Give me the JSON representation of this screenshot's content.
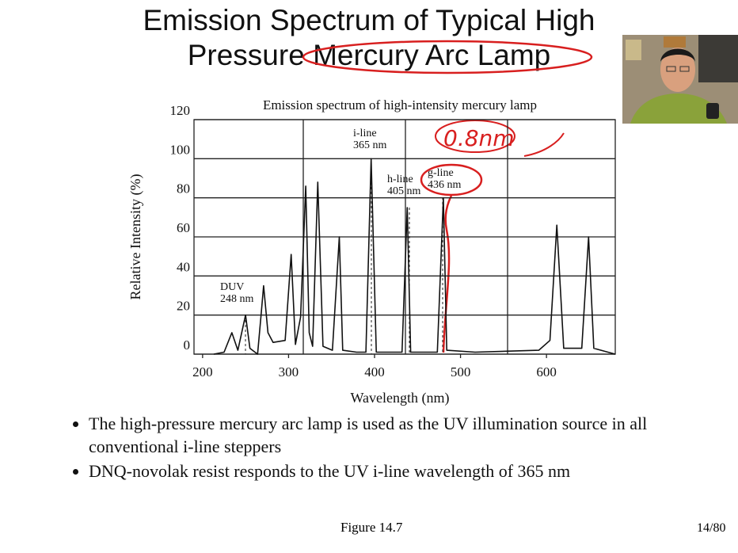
{
  "title": [
    "Emission Spectrum of Typical High",
    "Pressure Mercury Arc Lamp"
  ],
  "chart_data": {
    "type": "line",
    "title": "Emission spectrum of high-intensity mercury lamp",
    "x_label": "Wavelength (nm)",
    "y_label": "Relative Intensity (%)",
    "xlim": [
      190,
      680
    ],
    "ylim": [
      0,
      120
    ],
    "xticks": [
      200,
      300,
      400,
      500,
      600
    ],
    "yticks": [
      0,
      20,
      40,
      60,
      80,
      100,
      120
    ],
    "grid": true,
    "x": [
      213,
      225,
      234,
      241,
      250,
      255,
      264,
      268,
      271,
      276,
      282,
      296,
      303,
      308,
      314,
      320,
      324,
      328,
      334,
      340,
      351,
      359,
      363,
      379,
      390,
      396,
      402,
      432,
      438,
      442,
      473,
      480,
      484,
      517,
      591,
      604,
      612,
      620,
      641,
      649,
      655,
      680
    ],
    "series": [
      {
        "name": "Emission spectrum",
        "color": "#111111",
        "values": [
          0,
          1,
          11,
          2,
          20,
          3,
          0,
          20,
          35,
          11,
          6,
          7,
          51,
          5,
          19,
          86,
          11,
          4,
          88,
          4,
          2,
          60,
          2,
          1,
          1,
          100,
          1,
          1,
          75,
          1,
          1,
          80,
          2,
          1,
          2,
          7,
          66,
          3,
          3,
          60,
          3,
          0
        ]
      }
    ],
    "annotations": [
      [
        "DUV",
        "248 nm"
      ],
      [
        "i-line",
        "365 nm"
      ],
      [
        "h-line",
        "405 nm"
      ],
      [
        "g-line",
        "436 nm"
      ]
    ],
    "handwritten_note": "0.8nm"
  },
  "bullets": [
    "The high-pressure mercury arc lamp is used as the UV illumination source in all conventional i-line steppers",
    "DNQ-novolak resist responds to the UV i-line wavelength of 365 nm"
  ],
  "footer": {
    "figure": "Figure 14.7",
    "page": "14/80"
  }
}
